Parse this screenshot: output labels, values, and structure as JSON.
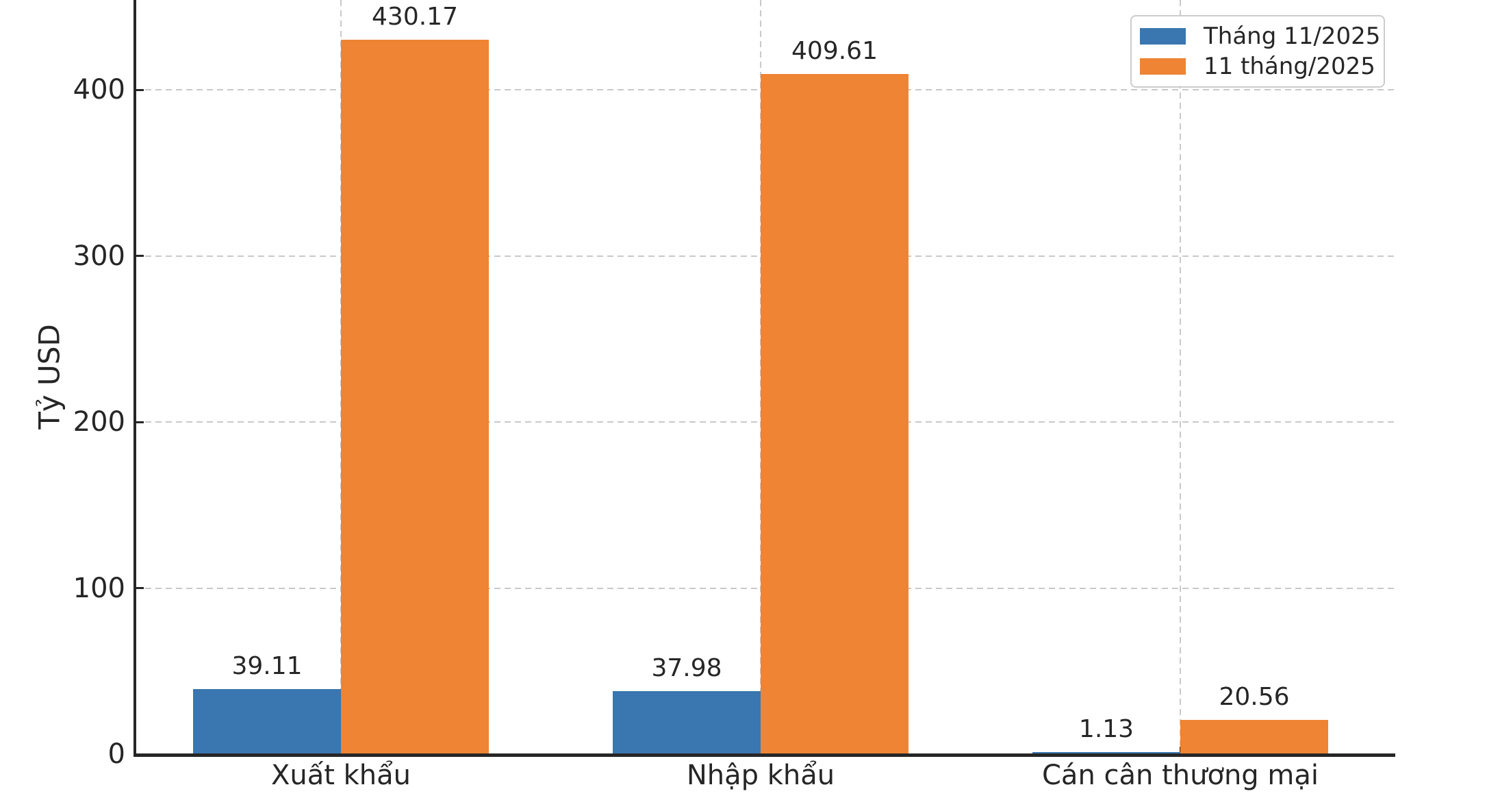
{
  "chart_data": {
    "type": "bar",
    "categories": [
      "Xuất khẩu",
      "Nhập khẩu",
      "Cán cân thương mại"
    ],
    "series": [
      {
        "name": "Tháng 11/2025",
        "color": "#3A76AF",
        "values": [
          39.11,
          37.98,
          1.13
        ]
      },
      {
        "name": "11 tháng/2025",
        "color": "#EE8434",
        "values": [
          430.17,
          409.61,
          20.56
        ]
      }
    ],
    "value_labels": [
      [
        "39.11",
        "37.98",
        "1.13"
      ],
      [
        "430.17",
        "409.61",
        "20.56"
      ]
    ],
    "title": "",
    "xlabel": "",
    "ylabel": "Tỷ USD",
    "yticks": [
      "0",
      "100",
      "200",
      "300",
      "400"
    ],
    "ylim": [
      0,
      455
    ],
    "grid": true,
    "grid_style": "dashed",
    "grid_color": "#c9c9c9",
    "axis_color": "#262626",
    "text_color": "#262626",
    "legend_position": "upper right",
    "background": "#ffffff"
  }
}
